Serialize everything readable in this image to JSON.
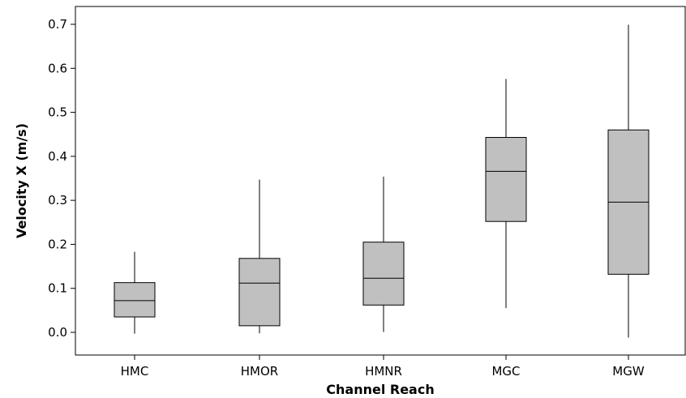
{
  "chart_data": {
    "type": "box",
    "title": "",
    "xlabel": "Channel Reach",
    "ylabel": "Velocity X (m/s)",
    "ylim": [
      -0.05,
      0.74
    ],
    "yticks": [
      0.0,
      0.1,
      0.2,
      0.3,
      0.4,
      0.5,
      0.6,
      0.7
    ],
    "ytick_labels": [
      "0.0",
      "0.1",
      "0.2",
      "0.3",
      "0.4",
      "0.5",
      "0.6",
      "0.7"
    ],
    "grid": false,
    "categories": [
      "HMC",
      "HMOR",
      "HMNR",
      "MGC",
      "MGW"
    ],
    "boxes": [
      {
        "category": "HMC",
        "min": -0.003,
        "q1": 0.035,
        "median": 0.072,
        "q3": 0.113,
        "max": 0.183
      },
      {
        "category": "HMOR",
        "min": -0.002,
        "q1": 0.015,
        "median": 0.112,
        "q3": 0.168,
        "max": 0.347
      },
      {
        "category": "HMNR",
        "min": 0.001,
        "q1": 0.062,
        "median": 0.123,
        "q3": 0.205,
        "max": 0.354
      },
      {
        "category": "MGC",
        "min": 0.055,
        "q1": 0.252,
        "median": 0.366,
        "q3": 0.443,
        "max": 0.576
      },
      {
        "category": "MGW",
        "min": -0.012,
        "q1": 0.132,
        "median": 0.296,
        "q3": 0.46,
        "max": 0.699
      }
    ],
    "colors": {
      "box_fill": "#c0c0c0",
      "stroke": "#000000"
    }
  }
}
